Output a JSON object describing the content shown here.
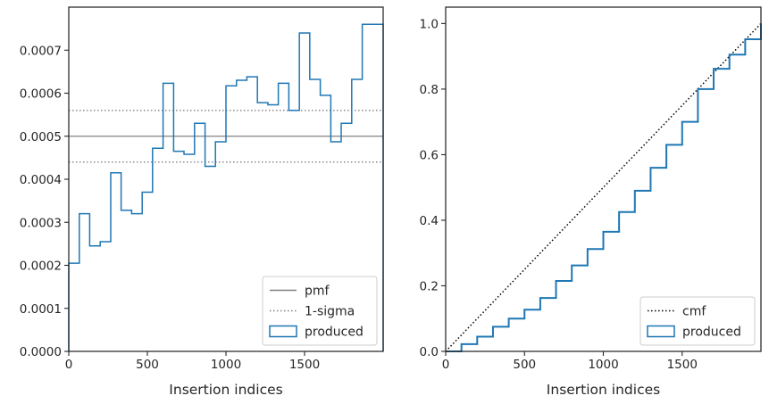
{
  "chart_data": [
    {
      "type": "line",
      "subtype": "histogram-step",
      "title": "",
      "xlabel": "Insertion indices",
      "ylabel": "",
      "xlim": [
        0,
        2000
      ],
      "ylim": [
        0,
        0.0008
      ],
      "xticks": [
        0,
        500,
        1000,
        1500
      ],
      "xtick_labels": [
        "0",
        "500",
        "1000",
        "1500"
      ],
      "yticks": [
        0,
        0.0001,
        0.0002,
        0.0003,
        0.0004,
        0.0005,
        0.0006,
        0.0007
      ],
      "ytick_labels": [
        "0.0000",
        "0.0001",
        "0.0002",
        "0.0003",
        "0.0004",
        "0.0005",
        "0.0006",
        "0.0007"
      ],
      "grid": false,
      "legend_position": "lower-right",
      "reference_lines": [
        {
          "name": "pmf",
          "value": 0.0005,
          "style": "solid",
          "color": "#808080"
        },
        {
          "name": "1-sigma",
          "value": 0.00056,
          "style": "dotted",
          "color": "#808080"
        },
        {
          "name": "1-sigma",
          "value": 0.00044,
          "style": "dotted",
          "color": "#808080"
        }
      ],
      "series": [
        {
          "name": "produced",
          "color": "#1f77b4",
          "bin_edges": [
            0,
            67,
            133,
            200,
            267,
            333,
            400,
            467,
            533,
            600,
            667,
            733,
            800,
            867,
            933,
            1000,
            1067,
            1133,
            1200,
            1267,
            1333,
            1400,
            1467,
            1533,
            1600,
            1667,
            1733,
            1800,
            1867,
            1933,
            2000
          ],
          "values": [
            0.000205,
            0.00032,
            0.000245,
            0.000255,
            0.000415,
            0.000328,
            0.00032,
            0.00037,
            0.000472,
            0.000623,
            0.000465,
            0.000458,
            0.00053,
            0.00043,
            0.000487,
            0.000617,
            0.00063,
            0.000638,
            0.000578,
            0.000573,
            0.000623,
            0.00056,
            0.00074,
            0.000632,
            0.000595,
            0.000487,
            0.00053,
            0.000632,
            0.00076,
            0.00076
          ]
        }
      ]
    },
    {
      "type": "line",
      "title": "",
      "xlabel": "Insertion indices",
      "ylabel": "",
      "xlim": [
        0,
        2000
      ],
      "ylim": [
        0,
        1.05
      ],
      "xticks": [
        0,
        500,
        1000,
        1500
      ],
      "xtick_labels": [
        "0",
        "500",
        "1000",
        "1500"
      ],
      "yticks": [
        0,
        0.2,
        0.4,
        0.6,
        0.8,
        1.0
      ],
      "ytick_labels": [
        "0.0",
        "0.2",
        "0.4",
        "0.6",
        "0.8",
        "1.0"
      ],
      "grid": false,
      "legend_position": "lower-right",
      "series": [
        {
          "name": "cmf",
          "style": "dotted",
          "color": "#000000",
          "x": [
            0,
            2000
          ],
          "y": [
            0,
            1.0
          ]
        },
        {
          "name": "produced",
          "style": "step",
          "color": "#1f77b4",
          "x": [
            0,
            100,
            200,
            300,
            400,
            500,
            600,
            700,
            800,
            900,
            1000,
            1100,
            1200,
            1300,
            1400,
            1500,
            1600,
            1700,
            1800,
            1900,
            2000
          ],
          "y": [
            0,
            0.022,
            0.045,
            0.075,
            0.1,
            0.127,
            0.163,
            0.215,
            0.262,
            0.312,
            0.365,
            0.425,
            0.49,
            0.56,
            0.63,
            0.7,
            0.8,
            0.862,
            0.905,
            0.952,
            1.0
          ]
        }
      ]
    }
  ]
}
